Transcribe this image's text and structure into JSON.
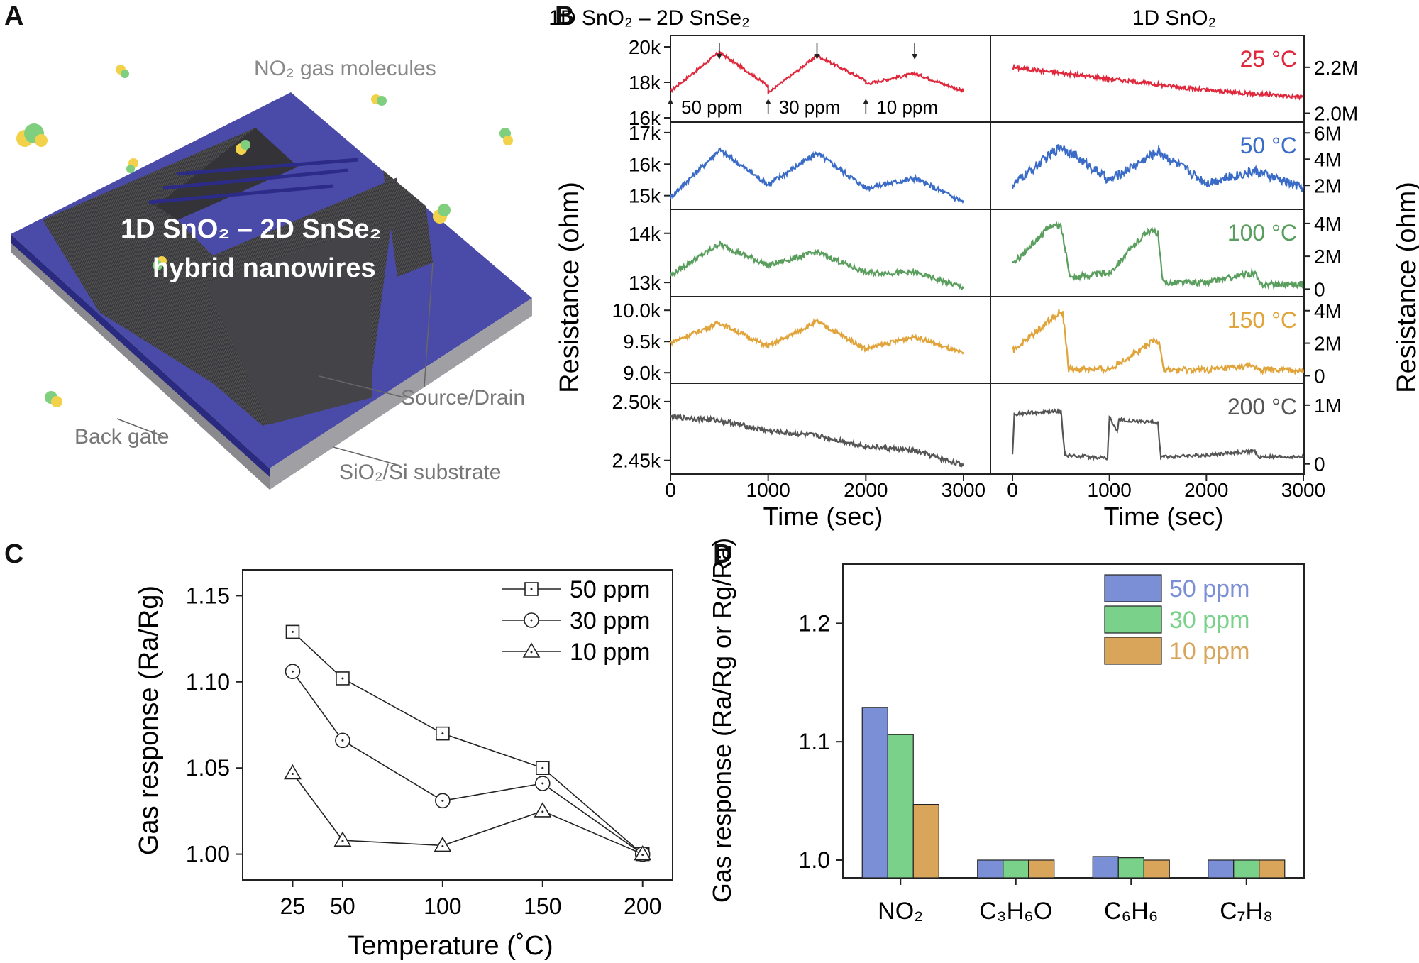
{
  "panels": {
    "a": "A",
    "b": "B",
    "c": "C",
    "d": "D"
  },
  "panel_a": {
    "molecules_label": "NO₂ gas molecules",
    "device_label_line1": "1D SnO₂ – 2D SnSe₂",
    "device_label_line2": "hybrid nanowires",
    "source_drain_label": "Source/Drain",
    "back_gate_label": "Back gate",
    "substrate_label": "SiO₂/Si substrate"
  },
  "chart_data": [
    {
      "id": "B-left",
      "type": "line",
      "title": "1D SnO₂ – 2D SnSe₂",
      "xlabel": "Time (sec)",
      "ylabel": "Resistance (ohm)",
      "xlim": [
        0,
        3000
      ],
      "xticks": [
        "0",
        "1000",
        "2000",
        "3000"
      ],
      "annotations": [
        "50 ppm",
        "30 ppm",
        "10 ppm"
      ],
      "pulses_sec": [
        [
          0,
          500
        ],
        [
          1000,
          1500
        ],
        [
          2000,
          2500
        ]
      ],
      "series": [
        {
          "temperature": "25 °C",
          "color": "#e0283c",
          "yticks": [
            "20k",
            "18k",
            "16k"
          ],
          "ylim": [
            16000,
            20400
          ],
          "points": [
            [
              0,
              17500
            ],
            [
              500,
              19700
            ],
            [
              1000,
              17800
            ],
            [
              1000,
              17400
            ],
            [
              1500,
              19500
            ],
            [
              2000,
              18100
            ],
            [
              2000,
              17900
            ],
            [
              2500,
              18500
            ],
            [
              3000,
              17500
            ]
          ]
        },
        {
          "temperature": "50 °C",
          "color": "#3a6bc6",
          "yticks": [
            "17k",
            "16k",
            "15k"
          ],
          "ylim": [
            14700,
            17200
          ],
          "points": [
            [
              0,
              14950
            ],
            [
              500,
              16450
            ],
            [
              1000,
              15350
            ],
            [
              1500,
              16350
            ],
            [
              2000,
              15250
            ],
            [
              2500,
              15550
            ],
            [
              3000,
              14800
            ]
          ]
        },
        {
          "temperature": "100 °C",
          "color": "#5a9e5e",
          "yticks": [
            "14k",
            "13k"
          ],
          "ylim": [
            12800,
            14400
          ],
          "points": [
            [
              0,
              13150
            ],
            [
              500,
              13780
            ],
            [
              1000,
              13350
            ],
            [
              1500,
              13620
            ],
            [
              2000,
              13200
            ],
            [
              2500,
              13200
            ],
            [
              3000,
              12900
            ]
          ]
        },
        {
          "temperature": "150 °C",
          "color": "#e0a43a",
          "yticks": [
            "10.0k",
            "9.5k",
            "9.0k"
          ],
          "ylim": [
            8900,
            10150
          ],
          "points": [
            [
              0,
              9480
            ],
            [
              500,
              9800
            ],
            [
              1000,
              9420
            ],
            [
              1500,
              9820
            ],
            [
              2000,
              9380
            ],
            [
              2500,
              9580
            ],
            [
              3000,
              9300
            ]
          ]
        },
        {
          "temperature": "200 °C",
          "color": "#555555",
          "yticks": [
            "2.50k",
            "2.45k"
          ],
          "ylim": [
            2442,
            2512
          ],
          "points": [
            [
              0,
              2487
            ],
            [
              500,
              2484
            ],
            [
              1000,
              2475
            ],
            [
              1500,
              2471
            ],
            [
              2000,
              2462
            ],
            [
              2500,
              2458
            ],
            [
              3000,
              2446
            ]
          ]
        }
      ]
    },
    {
      "id": "B-right",
      "type": "line",
      "title": "1D SnO₂",
      "xlabel": "Time (sec)",
      "ylabel": "Resistance (ohm)",
      "xlim": [
        0,
        3000
      ],
      "xticks": [
        "0",
        "1000",
        "2000",
        "3000"
      ],
      "series": [
        {
          "temperature": "25 °C",
          "color": "#e0283c",
          "yticks": [
            "2.2M",
            "2.0M"
          ],
          "ylim": [
            1980000,
            2320000
          ],
          "points": [
            [
              0,
              2200000
            ],
            [
              1000,
              2150000
            ],
            [
              2000,
              2100000
            ],
            [
              3000,
              2070000
            ]
          ]
        },
        {
          "temperature": "50 °C",
          "color": "#3a6bc6",
          "yticks": [
            "6M",
            "4M",
            "2M"
          ],
          "ylim": [
            500000,
            6500000
          ],
          "points": [
            [
              0,
              2000000
            ],
            [
              500,
              5000000
            ],
            [
              1000,
              2400000
            ],
            [
              1500,
              4600000
            ],
            [
              2000,
              2200000
            ],
            [
              2500,
              3100000
            ],
            [
              3000,
              1800000
            ]
          ]
        },
        {
          "temperature": "100 °C",
          "color": "#5a9e5e",
          "yticks": [
            "4M",
            "2M",
            "0"
          ],
          "ylim": [
            -200000,
            4600000
          ],
          "points": [
            [
              0,
              1500000
            ],
            [
              400,
              3900000
            ],
            [
              500,
              3800000
            ],
            [
              600,
              700000
            ],
            [
              1000,
              1000000
            ],
            [
              1400,
              3600000
            ],
            [
              1500,
              3400000
            ],
            [
              1550,
              400000
            ],
            [
              2000,
              400000
            ],
            [
              2500,
              1000000
            ],
            [
              2550,
              300000
            ],
            [
              3000,
              300000
            ]
          ]
        },
        {
          "temperature": "150 °C",
          "color": "#e0a43a",
          "yticks": [
            "4M",
            "2M",
            "0"
          ],
          "ylim": [
            -200000,
            4600000
          ],
          "points": [
            [
              0,
              1500000
            ],
            [
              480,
              3900000
            ],
            [
              520,
              3800000
            ],
            [
              580,
              400000
            ],
            [
              1000,
              400000
            ],
            [
              1450,
              2100000
            ],
            [
              1520,
              2000000
            ],
            [
              1560,
              350000
            ],
            [
              2000,
              350000
            ],
            [
              2500,
              600000
            ],
            [
              2540,
              350000
            ],
            [
              3000,
              350000
            ]
          ]
        },
        {
          "temperature": "200 °C",
          "color": "#555555",
          "yticks": [
            "1M",
            "0"
          ],
          "ylim": [
            -100000,
            1300000
          ],
          "points": [
            [
              0,
              150000
            ],
            [
              20,
              850000
            ],
            [
              500,
              900000
            ],
            [
              540,
              150000
            ],
            [
              980,
              100000
            ],
            [
              1000,
              800000
            ],
            [
              1080,
              550000
            ],
            [
              1100,
              750000
            ],
            [
              1500,
              700000
            ],
            [
              1530,
              120000
            ],
            [
              2000,
              150000
            ],
            [
              2500,
              220000
            ],
            [
              2530,
              120000
            ],
            [
              3000,
              120000
            ]
          ]
        }
      ]
    },
    {
      "id": "C",
      "type": "line",
      "xlabel": "Temperature (˚C)",
      "ylabel": "Gas response (Ra/Rg)",
      "xlim": [
        0,
        215
      ],
      "ylim": [
        0.985,
        1.165
      ],
      "xticks": [
        25,
        50,
        100,
        150,
        200
      ],
      "yticks": [
        "1.00",
        "1.05",
        "1.10",
        "1.15"
      ],
      "legend": "top-right",
      "x": [
        25,
        50,
        100,
        150,
        200
      ],
      "series": [
        {
          "name": "50 ppm",
          "marker": "square",
          "values": [
            1.129,
            1.102,
            1.07,
            1.05,
            1.0
          ]
        },
        {
          "name": "30 ppm",
          "marker": "circle",
          "values": [
            1.106,
            1.066,
            1.031,
            1.041,
            1.0
          ]
        },
        {
          "name": "10 ppm",
          "marker": "triangle",
          "values": [
            1.047,
            1.008,
            1.005,
            1.025,
            1.0
          ]
        }
      ]
    },
    {
      "id": "D",
      "type": "bar",
      "ylabel": "Gas response (Ra/Rg or Rg/Ra)",
      "ylim": [
        0.985,
        1.25
      ],
      "yticks": [
        "1.0",
        "1.1",
        "1.2"
      ],
      "legend": "top-right",
      "categories": [
        "NO₂",
        "C₃H₆O",
        "C₆H₆",
        "C₇H₈"
      ],
      "series": [
        {
          "name": "50 ppm",
          "color": "#7b8fd6",
          "values": [
            1.129,
            1.0,
            1.003,
            1.0
          ]
        },
        {
          "name": "30 ppm",
          "color": "#7ad18a",
          "values": [
            1.106,
            1.0,
            1.002,
            1.0
          ]
        },
        {
          "name": "10 ppm",
          "color": "#d9a55a",
          "values": [
            1.047,
            1.0,
            1.0,
            1.0
          ]
        }
      ]
    }
  ]
}
